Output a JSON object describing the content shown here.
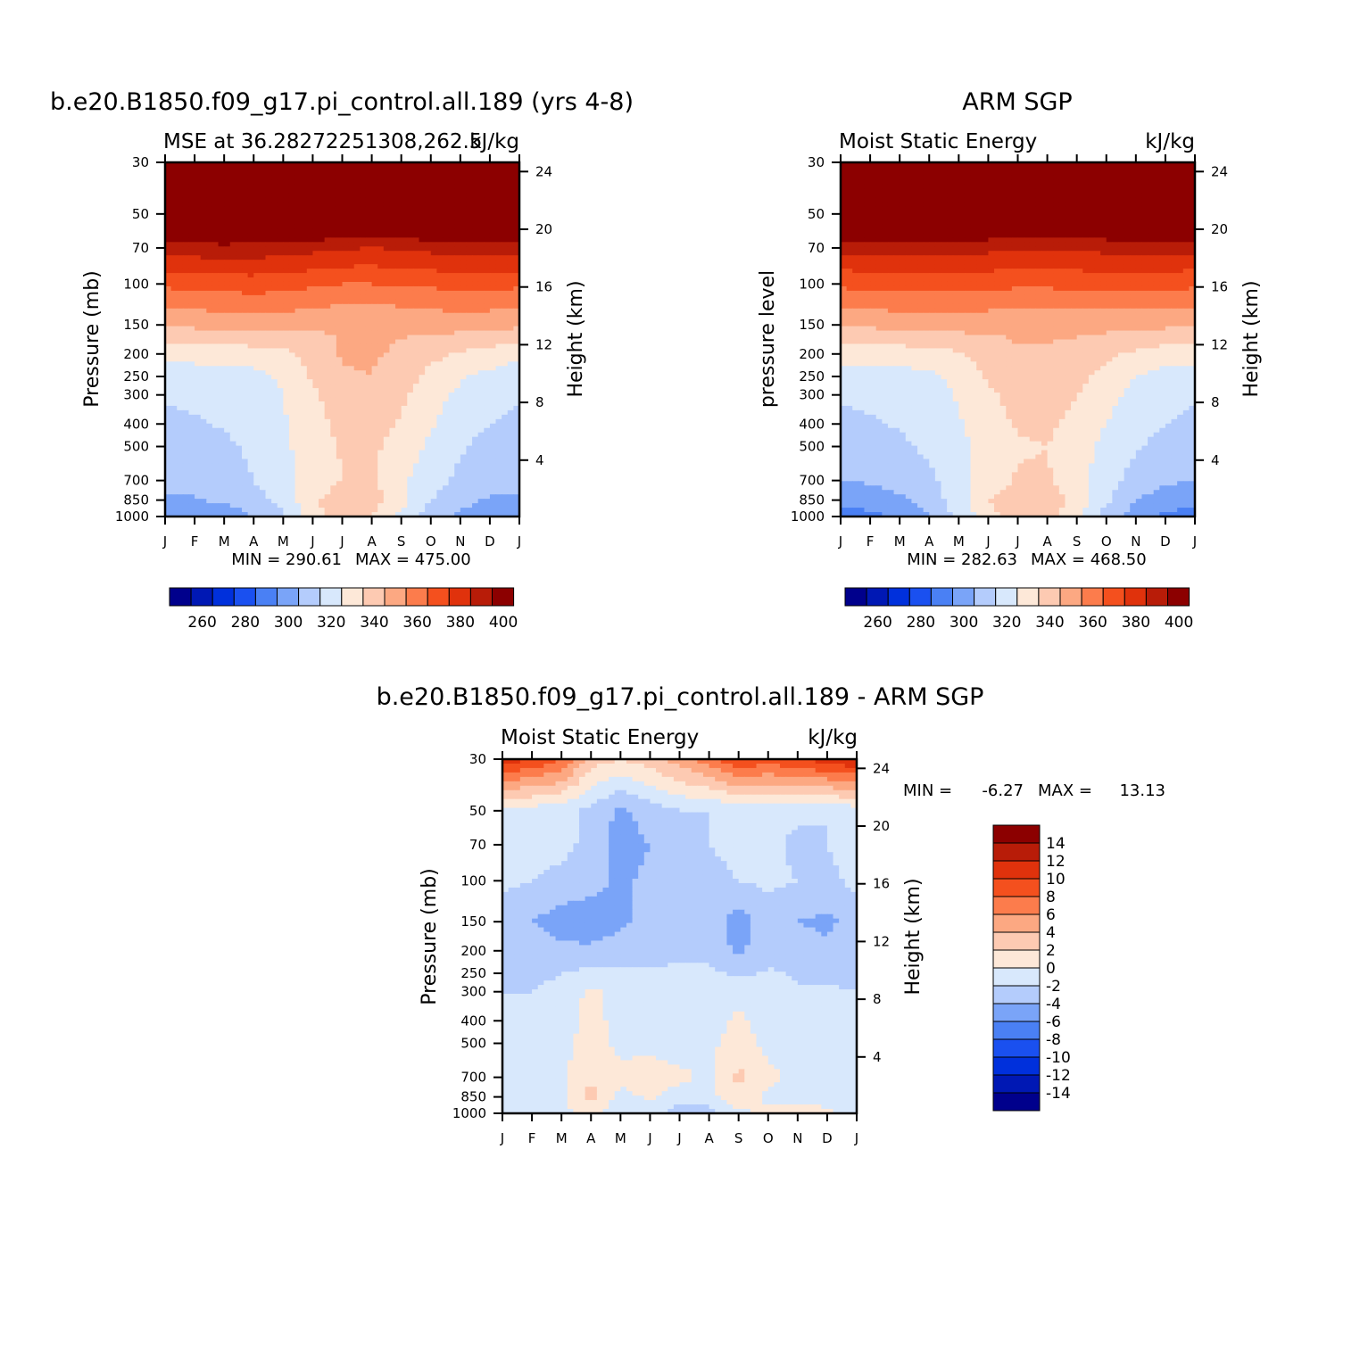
{
  "chart_data": [
    {
      "type": "heatmap",
      "title": "b.e20.B1850.f09_g17.pi_control.all.189 (yrs 4-8)",
      "subtitle_left": "MSE at 36.28272251308,262.5",
      "subtitle_right": "kJ/kg",
      "ylabel": "Pressure (mb)",
      "ylabel_right": "Height (km)",
      "x": [
        "J",
        "F",
        "M",
        "A",
        "M",
        "J",
        "J",
        "A",
        "S",
        "O",
        "N",
        "D",
        "J"
      ],
      "y": [
        1000,
        850,
        700,
        500,
        400,
        300,
        250,
        200,
        150,
        100,
        70,
        50,
        30
      ],
      "y_right": [
        4,
        8,
        12,
        16,
        20,
        24
      ],
      "min_label": "MIN = 290.61",
      "max_label": "MAX = 475.00",
      "colorbar_ticks": [
        "260",
        "280",
        "300",
        "320",
        "340",
        "360",
        "380",
        "400"
      ],
      "approx_values": [
        [
          290,
          291,
          294,
          300,
          309,
          328,
          332,
          330,
          318,
          305,
          298,
          293,
          290
        ],
        [
          298,
          299,
          302,
          306,
          313,
          328,
          336,
          335,
          323,
          310,
          303,
          299,
          298
        ],
        [
          303,
          304,
          306,
          310,
          316,
          324,
          330,
          331,
          322,
          314,
          308,
          304,
          303
        ],
        [
          305,
          306,
          308,
          312,
          318,
          325,
          331,
          332,
          326,
          318,
          311,
          307,
          305
        ],
        [
          308,
          309,
          311,
          314,
          319,
          326,
          333,
          334,
          329,
          321,
          314,
          310,
          308
        ],
        [
          311,
          312,
          313,
          315,
          320,
          328,
          336,
          337,
          332,
          324,
          318,
          314,
          311
        ],
        [
          314,
          315,
          316,
          317,
          322,
          331,
          339,
          340,
          335,
          327,
          321,
          317,
          314
        ],
        [
          323,
          324,
          324,
          325,
          327,
          334,
          341,
          341,
          339,
          333,
          329,
          326,
          323
        ],
        [
          342,
          342,
          344,
          344,
          344,
          342,
          340,
          340,
          341,
          343,
          344,
          343,
          342
        ],
        [
          362,
          363,
          364,
          365,
          364,
          362,
          360,
          360,
          361,
          362,
          363,
          363,
          362
        ],
        [
          385,
          386,
          387,
          386,
          385,
          383,
          381,
          380,
          381,
          383,
          385,
          386,
          385
        ],
        [
          415,
          416,
          417,
          417,
          416,
          415,
          413,
          413,
          414,
          415,
          416,
          416,
          415
        ],
        [
          460,
          461,
          462,
          462,
          461,
          460,
          458,
          458,
          459,
          460,
          461,
          461,
          460
        ]
      ]
    },
    {
      "type": "heatmap",
      "title": "ARM SGP",
      "subtitle_left": "Moist Static Energy",
      "subtitle_right": "kJ/kg",
      "ylabel": "pressure level",
      "ylabel_right": "Height (km)",
      "x": [
        "J",
        "F",
        "M",
        "A",
        "M",
        "J",
        "J",
        "A",
        "S",
        "O",
        "N",
        "D",
        "J"
      ],
      "y": [
        1000,
        850,
        700,
        500,
        400,
        300,
        250,
        200,
        150,
        100,
        70,
        50,
        30
      ],
      "y_right": [
        4,
        8,
        12,
        16,
        20,
        24
      ],
      "min_label": "MIN = 282.63",
      "max_label": "MAX = 468.50",
      "colorbar_ticks": [
        "260",
        "280",
        "300",
        "320",
        "340",
        "360",
        "380",
        "400"
      ],
      "approx_values": [
        [
          285,
          287,
          291,
          300,
          312,
          326,
          338,
          336,
          322,
          306,
          294,
          288,
          285
        ],
        [
          293,
          295,
          298,
          304,
          316,
          330,
          336,
          335,
          327,
          312,
          300,
          295,
          293
        ],
        [
          300,
          301,
          304,
          308,
          316,
          325,
          331,
          331,
          324,
          314,
          306,
          302,
          300
        ],
        [
          305,
          306,
          308,
          312,
          317,
          324,
          329,
          330,
          325,
          317,
          311,
          307,
          305
        ],
        [
          308,
          309,
          311,
          314,
          319,
          326,
          331,
          332,
          327,
          320,
          313,
          310,
          308
        ],
        [
          311,
          312,
          313,
          316,
          321,
          328,
          334,
          335,
          330,
          323,
          317,
          313,
          311
        ],
        [
          315,
          315,
          316,
          318,
          323,
          331,
          337,
          338,
          333,
          327,
          320,
          316,
          315
        ],
        [
          324,
          324,
          325,
          326,
          329,
          334,
          339,
          339,
          336,
          332,
          328,
          325,
          324
        ],
        [
          342,
          342,
          343,
          343,
          344,
          343,
          342,
          342,
          343,
          343,
          343,
          342,
          342
        ],
        [
          362,
          363,
          364,
          364,
          364,
          363,
          362,
          362,
          363,
          363,
          363,
          363,
          362
        ],
        [
          383,
          384,
          385,
          385,
          384,
          383,
          381,
          381,
          382,
          383,
          384,
          384,
          383
        ],
        [
          412,
          413,
          414,
          414,
          413,
          412,
          410,
          410,
          411,
          412,
          413,
          413,
          412
        ],
        [
          455,
          456,
          457,
          457,
          456,
          455,
          453,
          453,
          454,
          455,
          456,
          456,
          455
        ]
      ]
    },
    {
      "type": "heatmap",
      "title": "b.e20.B1850.f09_g17.pi_control.all.189 - ARM SGP",
      "subtitle_left": "Moist Static Energy",
      "subtitle_right": "kJ/kg",
      "ylabel": "Pressure (mb)",
      "ylabel_right": "Height (km)",
      "x": [
        "J",
        "F",
        "M",
        "A",
        "M",
        "J",
        "J",
        "A",
        "S",
        "O",
        "N",
        "D",
        "J"
      ],
      "y": [
        1000,
        850,
        700,
        500,
        400,
        300,
        250,
        200,
        150,
        100,
        70,
        50,
        30
      ],
      "y_right": [
        4,
        8,
        12,
        16,
        20,
        24
      ],
      "min_label": "MIN =",
      "min_value": "-6.27",
      "max_label": "MAX =",
      "max_value": "13.13",
      "colorbar_ticks": [
        "14",
        "12",
        "10",
        "8",
        "6",
        "4",
        "2",
        "0",
        "-2",
        "-4",
        "-6",
        "-8",
        "-10",
        "-12",
        "-14"
      ],
      "approx_values": [
        [
          -1.5,
          -1.2,
          -0.5,
          0.5,
          -1.5,
          -1.0,
          -3.5,
          -3.0,
          -0.5,
          0.5,
          0.5,
          0.3,
          -1.5
        ],
        [
          -1.0,
          -0.8,
          -0.5,
          2.5,
          -0.5,
          0.3,
          -1.0,
          -0.5,
          1.5,
          -0.5,
          -0.5,
          -0.5,
          -1.0
        ],
        [
          -1.0,
          -0.8,
          -0.5,
          2.0,
          0.5,
          1.0,
          0.5,
          -0.5,
          2.5,
          0.5,
          -0.5,
          -0.5,
          -1.0
        ],
        [
          -1.5,
          -1.0,
          -0.8,
          1.0,
          -0.5,
          -0.5,
          -1.0,
          -0.5,
          1.0,
          -0.5,
          -1.0,
          -0.8,
          -1.5
        ],
        [
          -1.8,
          -1.5,
          -1.0,
          0.8,
          -0.8,
          -1.0,
          -1.2,
          -1.0,
          0.5,
          -1.0,
          -1.5,
          -1.5,
          -1.8
        ],
        [
          -2.0,
          -2.0,
          -1.5,
          0.5,
          -1.0,
          -1.5,
          -1.5,
          -1.2,
          -0.5,
          -1.2,
          -1.8,
          -1.8,
          -2.0
        ],
        [
          -2.2,
          -2.5,
          -2.0,
          -1.5,
          -1.5,
          -1.8,
          -1.8,
          -1.5,
          -2.5,
          -1.8,
          -2.2,
          -2.5,
          -2.2
        ],
        [
          -2.5,
          -3.0,
          -3.5,
          -3.5,
          -3.0,
          -2.5,
          -2.2,
          -2.5,
          -4.5,
          -2.5,
          -3.0,
          -3.5,
          -2.5
        ],
        [
          -3.0,
          -4.0,
          -5.0,
          -5.5,
          -4.5,
          -3.0,
          -2.5,
          -3.0,
          -5.0,
          -3.0,
          -4.0,
          -4.5,
          -3.0
        ],
        [
          -1.5,
          -2.0,
          -2.5,
          -3.0,
          -4.5,
          -3.5,
          -2.5,
          -2.5,
          -2.0,
          -1.5,
          -2.0,
          -2.5,
          -1.5
        ],
        [
          -1.0,
          -1.5,
          -1.5,
          -2.5,
          -5.0,
          -4.0,
          -2.5,
          -2.0,
          -1.5,
          -1.5,
          -2.5,
          -2.0,
          -1.0
        ],
        [
          -1.0,
          -1.0,
          -1.2,
          -2.5,
          -4.5,
          -3.0,
          -2.0,
          -2.0,
          -1.5,
          -1.5,
          -1.5,
          -2.0,
          -1.0
        ],
        [
          11.0,
          10.0,
          8.0,
          3.0,
          2.0,
          3.0,
          5.0,
          7.0,
          10.0,
          9.0,
          10.0,
          11.0,
          12.0
        ]
      ]
    }
  ],
  "palette_full": [
    "#00008c",
    "#0018b4",
    "#0030dc",
    "#1a50f0",
    "#4a80f4",
    "#7aa4f8",
    "#b4ccfc",
    "#d8e8fc",
    "#fde8d8",
    "#fdcab2",
    "#fca882",
    "#fc7c4c",
    "#f4501e",
    "#e0320c",
    "#b81c08",
    "#8c0000"
  ],
  "palette_diff": [
    "#8c0000",
    "#b81c08",
    "#e0320c",
    "#f4501e",
    "#fc7c4c",
    "#fca882",
    "#fdcab2",
    "#fde8d8",
    "#d8e8fc",
    "#b4ccfc",
    "#7aa4f8",
    "#4a80f4",
    "#1a50f0",
    "#0030dc",
    "#0018b4",
    "#00008c"
  ]
}
